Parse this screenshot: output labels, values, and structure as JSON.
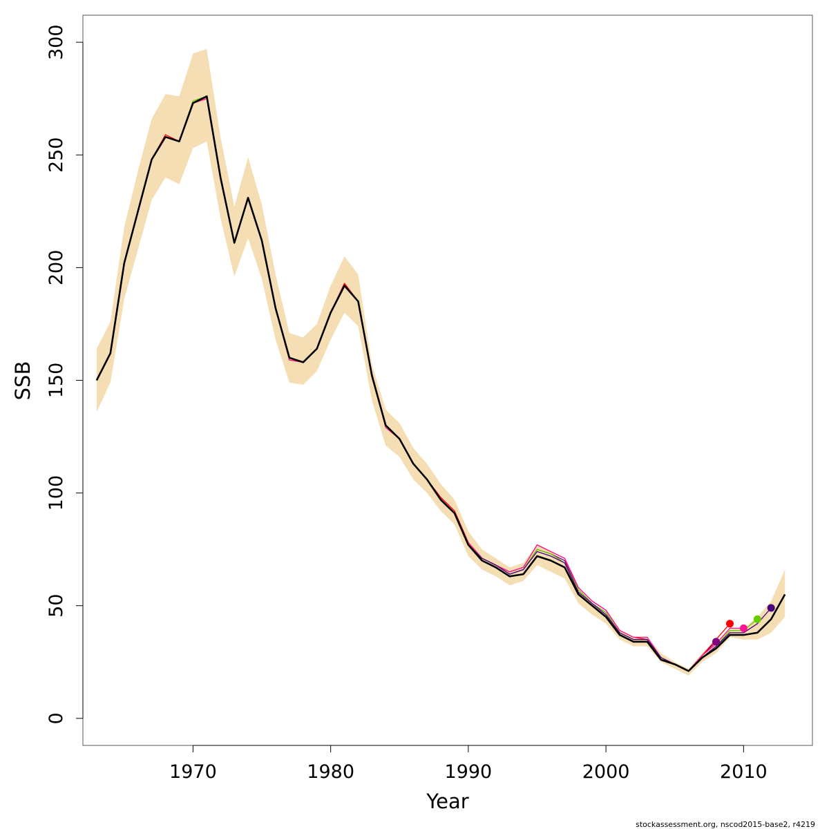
{
  "chart_data": {
    "type": "line",
    "title": "",
    "xlabel": "Year",
    "ylabel": "SSB",
    "xlim": [
      1962,
      2015
    ],
    "ylim": [
      -12,
      312
    ],
    "xticks": [
      1970,
      1980,
      1990,
      2000,
      2010
    ],
    "yticks": [
      0,
      50,
      100,
      150,
      200,
      250,
      300
    ],
    "xtick_labels": [
      "1970",
      "1980",
      "1990",
      "2000",
      "2010"
    ],
    "ytick_labels": [
      "0",
      "50",
      "100",
      "150",
      "200",
      "250",
      "300"
    ],
    "grid": false,
    "legend": "none",
    "band": {
      "color": "#f5deb3",
      "x": [
        1963,
        1964,
        1965,
        1966,
        1967,
        1968,
        1969,
        1970,
        1971,
        1972,
        1973,
        1974,
        1975,
        1976,
        1977,
        1978,
        1979,
        1980,
        1981,
        1982,
        1983,
        1984,
        1985,
        1986,
        1987,
        1988,
        1989,
        1990,
        1991,
        1992,
        1993,
        1994,
        1995,
        1996,
        1997,
        1998,
        1999,
        2000,
        2001,
        2002,
        2003,
        2004,
        2005,
        2006,
        2007,
        2008,
        2009,
        2010,
        2011,
        2012,
        2013
      ],
      "upper": [
        164,
        176,
        218,
        243,
        266,
        277,
        276,
        295,
        297,
        258,
        227,
        249,
        228,
        197,
        171,
        169,
        175,
        192,
        205,
        197,
        157,
        137,
        131,
        120,
        113,
        104,
        97,
        83,
        75,
        71,
        67,
        69,
        77,
        74,
        69,
        57,
        51,
        47,
        39,
        36,
        36,
        29,
        25,
        22,
        29,
        34,
        40,
        40,
        45,
        52,
        66
      ],
      "lower": [
        136,
        149,
        186,
        208,
        230,
        240,
        237,
        253,
        256,
        222,
        196,
        213,
        195,
        168,
        149,
        148,
        154,
        168,
        180,
        174,
        141,
        121,
        116,
        106,
        100,
        92,
        86,
        72,
        66,
        63,
        59,
        61,
        68,
        65,
        62,
        51,
        46,
        42,
        35,
        32,
        32,
        25,
        22,
        19,
        25,
        29,
        36,
        35,
        35,
        38,
        45
      ]
    },
    "series": [
      {
        "color": "#800080",
        "x": [
          1963,
          1964,
          1965,
          1966,
          1967,
          1968,
          1969,
          1970,
          1971,
          1972,
          1973,
          1974,
          1975,
          1976,
          1977,
          1978,
          1979,
          1980,
          1981,
          1982,
          1983,
          1984,
          1985,
          1986,
          1987,
          1988,
          1989,
          1990,
          1991,
          1992,
          1993,
          1994,
          1995,
          1996,
          1997,
          1998,
          1999,
          2000,
          2001,
          2002,
          2003,
          2004,
          2005,
          2006,
          2007,
          2008
        ],
        "values": [
          150,
          162,
          202,
          225,
          248,
          258,
          256,
          273,
          276,
          240,
          211,
          231,
          212,
          182,
          160,
          158,
          164,
          180,
          193,
          185,
          152,
          130,
          124,
          113,
          106,
          98,
          92,
          78,
          71,
          68,
          64,
          66,
          75,
          73,
          70,
          57,
          51,
          47,
          38,
          35,
          35,
          27,
          24,
          21,
          28,
          34
        ],
        "end_marker": true
      },
      {
        "color": "#ff0000",
        "x": [
          1963,
          1964,
          1965,
          1966,
          1967,
          1968,
          1969,
          1970,
          1971,
          1972,
          1973,
          1974,
          1975,
          1976,
          1977,
          1978,
          1979,
          1980,
          1981,
          1982,
          1983,
          1984,
          1985,
          1986,
          1987,
          1988,
          1989,
          1990,
          1991,
          1992,
          1993,
          1994,
          1995,
          1996,
          1997,
          1998,
          1999,
          2000,
          2001,
          2002,
          2003,
          2004,
          2005,
          2006,
          2007,
          2008,
          2009
        ],
        "values": [
          150,
          162,
          202,
          225,
          248,
          259,
          256,
          273,
          275,
          240,
          211,
          231,
          212,
          182,
          159,
          158,
          164,
          180,
          193,
          185,
          153,
          130,
          124,
          113,
          106,
          98,
          92,
          78,
          71,
          68,
          65,
          67,
          77,
          74,
          71,
          58,
          52,
          48,
          39,
          36,
          35,
          27,
          24,
          21,
          28,
          35,
          42
        ],
        "end_marker": true
      },
      {
        "color": "#ff1493",
        "x": [
          1963,
          1964,
          1965,
          1966,
          1967,
          1968,
          1969,
          1970,
          1971,
          1972,
          1973,
          1974,
          1975,
          1976,
          1977,
          1978,
          1979,
          1980,
          1981,
          1982,
          1983,
          1984,
          1985,
          1986,
          1987,
          1988,
          1989,
          1990,
          1991,
          1992,
          1993,
          1994,
          1995,
          1996,
          1997,
          1998,
          1999,
          2000,
          2001,
          2002,
          2003,
          2004,
          2005,
          2006,
          2007,
          2008,
          2009,
          2010
        ],
        "values": [
          150,
          162,
          202,
          225,
          248,
          258,
          256,
          273,
          275,
          239,
          211,
          231,
          212,
          182,
          159,
          158,
          164,
          180,
          192,
          185,
          152,
          129,
          124,
          113,
          106,
          97,
          91,
          78,
          71,
          68,
          65,
          67,
          77,
          74,
          71,
          58,
          52,
          48,
          39,
          36,
          36,
          27,
          24,
          21,
          28,
          33,
          40,
          40
        ],
        "end_marker": true
      },
      {
        "color": "#66cd00",
        "x": [
          1963,
          1964,
          1965,
          1966,
          1967,
          1968,
          1969,
          1970,
          1971,
          1972,
          1973,
          1974,
          1975,
          1976,
          1977,
          1978,
          1979,
          1980,
          1981,
          1982,
          1983,
          1984,
          1985,
          1986,
          1987,
          1988,
          1989,
          1990,
          1991,
          1992,
          1993,
          1994,
          1995,
          1996,
          1997,
          1998,
          1999,
          2000,
          2001,
          2002,
          2003,
          2004,
          2005,
          2006,
          2007,
          2008,
          2009,
          2010,
          2011
        ],
        "values": [
          150,
          162,
          202,
          225,
          248,
          258,
          256,
          274,
          276,
          240,
          211,
          231,
          212,
          182,
          160,
          158,
          164,
          180,
          192,
          185,
          152,
          130,
          124,
          113,
          106,
          97,
          91,
          77,
          71,
          68,
          64,
          66,
          75,
          73,
          69,
          57,
          51,
          47,
          38,
          35,
          35,
          27,
          24,
          21,
          27,
          32,
          39,
          39,
          44
        ],
        "end_marker": true
      },
      {
        "color": "#4b0082",
        "x": [
          1963,
          1964,
          1965,
          1966,
          1967,
          1968,
          1969,
          1970,
          1971,
          1972,
          1973,
          1974,
          1975,
          1976,
          1977,
          1978,
          1979,
          1980,
          1981,
          1982,
          1983,
          1984,
          1985,
          1986,
          1987,
          1988,
          1989,
          1990,
          1991,
          1992,
          1993,
          1994,
          1995,
          1996,
          1997,
          1998,
          1999,
          2000,
          2001,
          2002,
          2003,
          2004,
          2005,
          2006,
          2007,
          2008,
          2009,
          2010,
          2011,
          2012
        ],
        "values": [
          150,
          162,
          202,
          225,
          248,
          258,
          256,
          273,
          276,
          240,
          211,
          231,
          212,
          182,
          160,
          158,
          164,
          180,
          192,
          185,
          152,
          130,
          124,
          113,
          106,
          97,
          91,
          77,
          71,
          68,
          64,
          66,
          74,
          72,
          69,
          56,
          51,
          46,
          38,
          35,
          35,
          27,
          24,
          21,
          27,
          32,
          38,
          38,
          42,
          49
        ],
        "end_marker": true
      },
      {
        "color": "#000000",
        "x": [
          1963,
          1964,
          1965,
          1966,
          1967,
          1968,
          1969,
          1970,
          1971,
          1972,
          1973,
          1974,
          1975,
          1976,
          1977,
          1978,
          1979,
          1980,
          1981,
          1982,
          1983,
          1984,
          1985,
          1986,
          1987,
          1988,
          1989,
          1990,
          1991,
          1992,
          1993,
          1994,
          1995,
          1996,
          1997,
          1998,
          1999,
          2000,
          2001,
          2002,
          2003,
          2004,
          2005,
          2006,
          2007,
          2008,
          2009,
          2010,
          2011,
          2012,
          2013
        ],
        "values": [
          150,
          162,
          202,
          225,
          248,
          258,
          256,
          273,
          276,
          240,
          211,
          231,
          212,
          182,
          160,
          158,
          164,
          180,
          192,
          185,
          152,
          130,
          124,
          113,
          106,
          97,
          91,
          77,
          70,
          67,
          63,
          64,
          72,
          70,
          67,
          55,
          50,
          45,
          37,
          34,
          34,
          26,
          24,
          21,
          27,
          31,
          37,
          37,
          38,
          44,
          55
        ],
        "end_marker": false
      }
    ]
  },
  "footer": {
    "credit": "stockassessment.org, nscod2015-base2, r4219"
  }
}
